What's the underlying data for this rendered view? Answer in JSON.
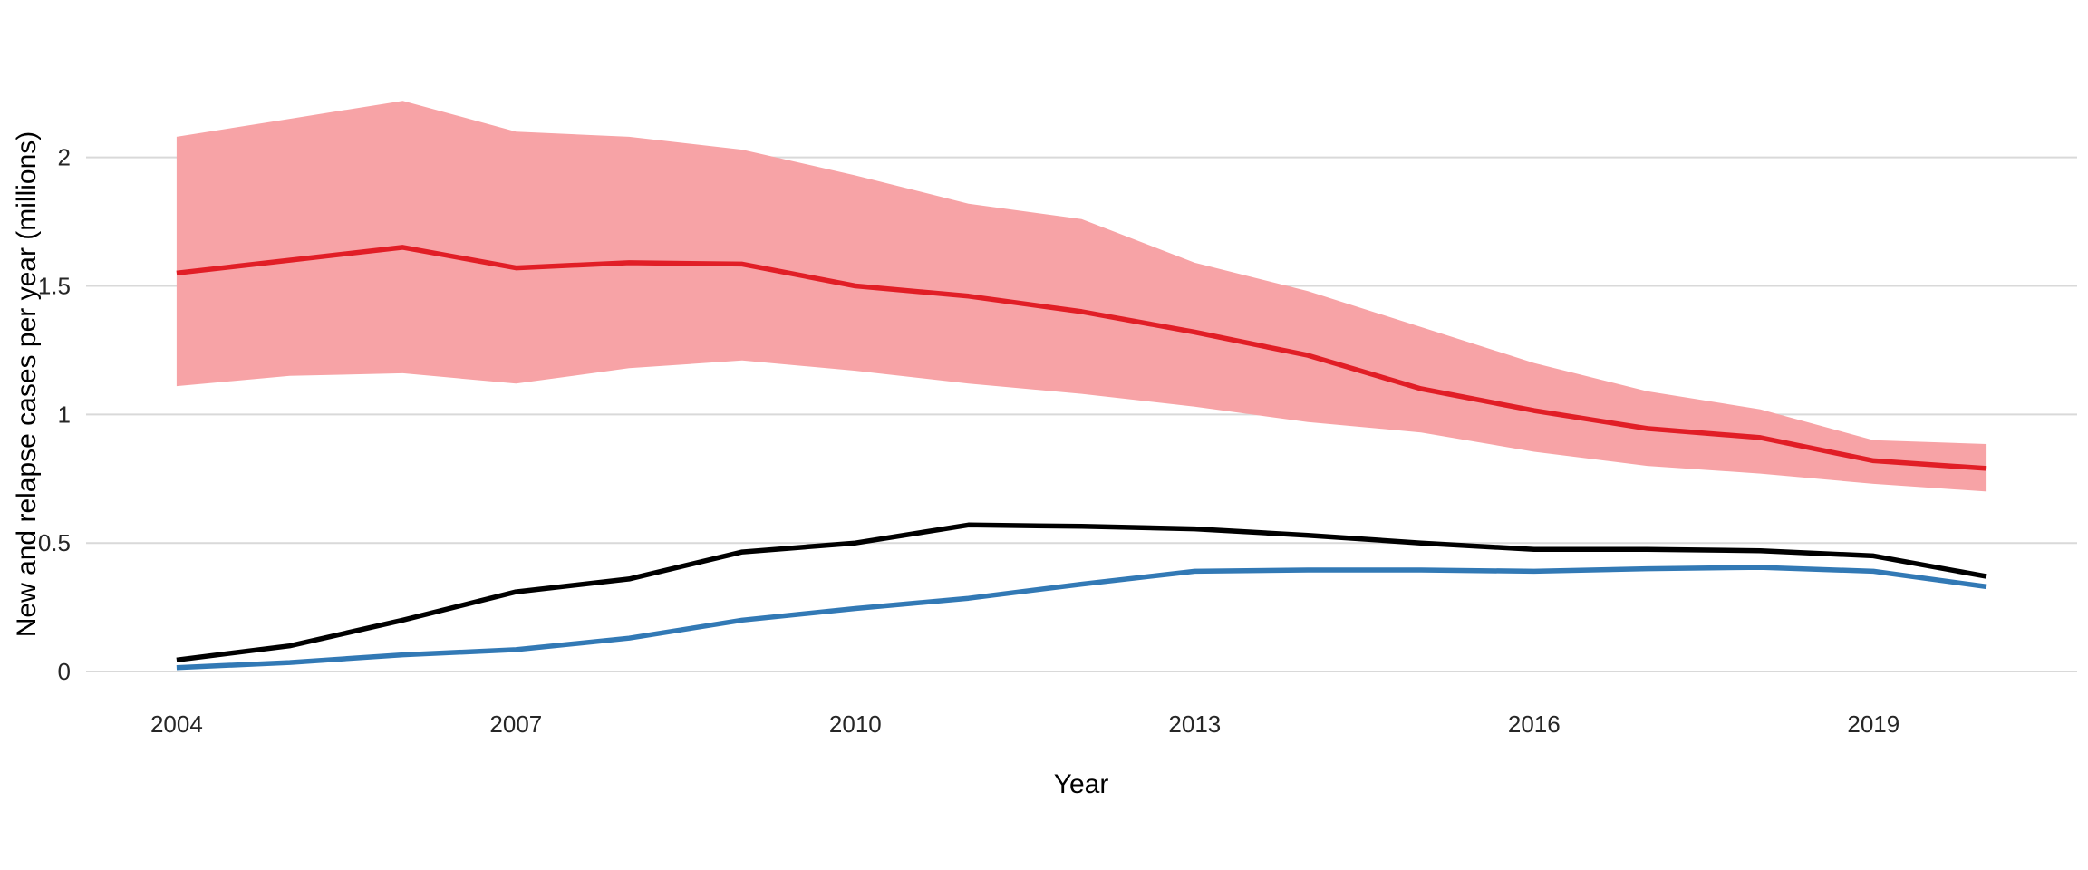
{
  "chart_data": {
    "type": "line",
    "title": "",
    "xlabel": "Year",
    "ylabel": "New and relapse cases per year (millions)",
    "x": [
      2004,
      2005,
      2006,
      2007,
      2008,
      2009,
      2010,
      2011,
      2012,
      2013,
      2014,
      2015,
      2016,
      2017,
      2018,
      2019,
      2020
    ],
    "xlim": [
      2003.2,
      2020.8
    ],
    "ylim": [
      -0.095,
      2.33
    ],
    "x_ticks": [
      "2004",
      "2007",
      "2010",
      "2013",
      "2016",
      "2019"
    ],
    "x_tick_values": [
      2004,
      2007,
      2010,
      2013,
      2016,
      2019
    ],
    "y_ticks": [
      "0",
      "0.5",
      "1",
      "1.5",
      "2"
    ],
    "y_tick_values": [
      0,
      0.5,
      1,
      1.5,
      2
    ],
    "grid": "horizontal-major-only",
    "legend_position": "none",
    "band": {
      "name": "estimated-incidence-uncertainty-band",
      "fill": "#F7A3A6",
      "upper": [
        2.08,
        2.15,
        2.22,
        2.1,
        2.08,
        2.03,
        1.93,
        1.82,
        1.76,
        1.59,
        1.48,
        1.34,
        1.2,
        1.09,
        1.02,
        0.9,
        0.885
      ],
      "lower": [
        1.11,
        1.15,
        1.16,
        1.12,
        1.18,
        1.21,
        1.17,
        1.12,
        1.08,
        1.03,
        0.97,
        0.93,
        0.855,
        0.8,
        0.77,
        0.73,
        0.7
      ]
    },
    "series": [
      {
        "name": "estimated-incidence-red-line",
        "color": "#E11E26",
        "width": 5.5,
        "values": [
          1.55,
          1.6,
          1.65,
          1.57,
          1.59,
          1.585,
          1.5,
          1.46,
          1.4,
          1.32,
          1.23,
          1.1,
          1.015,
          0.945,
          0.91,
          0.82,
          0.79
        ]
      },
      {
        "name": "notified-cases-black-line",
        "color": "#000000",
        "width": 5.5,
        "values": [
          0.045,
          0.1,
          0.2,
          0.31,
          0.36,
          0.465,
          0.5,
          0.57,
          0.565,
          0.555,
          0.53,
          0.5,
          0.475,
          0.475,
          0.47,
          0.45,
          0.37
        ]
      },
      {
        "name": "blue-line",
        "color": "#3279B5",
        "width": 5.5,
        "values": [
          0.015,
          0.035,
          0.065,
          0.085,
          0.13,
          0.2,
          0.245,
          0.285,
          0.34,
          0.39,
          0.395,
          0.395,
          0.39,
          0.4,
          0.405,
          0.39,
          0.33
        ]
      }
    ],
    "colors": {
      "gridline": "#D9D9D9",
      "tick_text": "#262626",
      "axis_title_text": "#000000",
      "background": "#FFFFFF"
    }
  }
}
